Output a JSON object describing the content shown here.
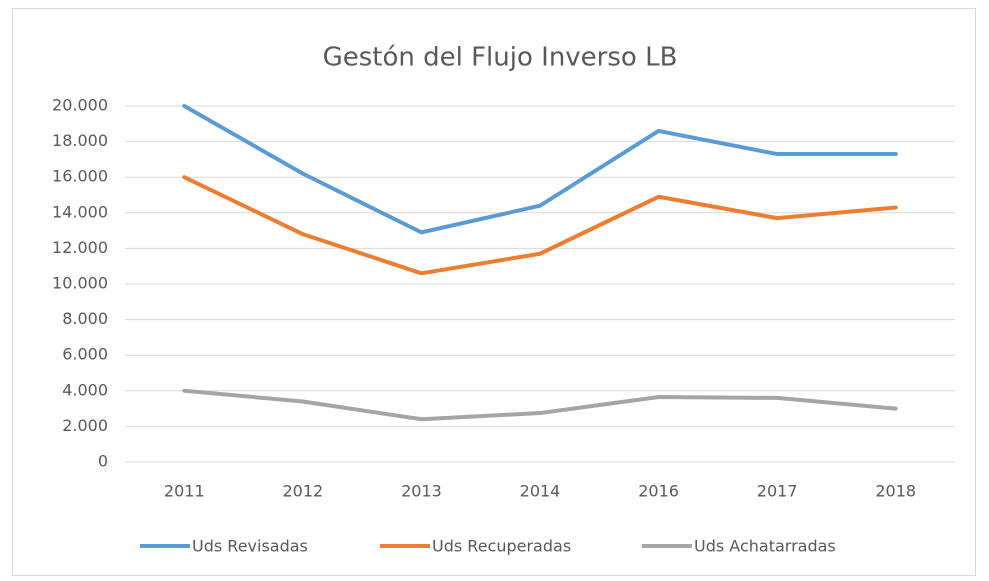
{
  "chart_data": {
    "type": "line",
    "title": "Gestón del Flujo Inverso LB",
    "categories": [
      "2011",
      "2012",
      "2013",
      "2014",
      "2016",
      "2017",
      "2018"
    ],
    "series": [
      {
        "name": "Uds Revisadas",
        "color": "#5b9bd5",
        "values": [
          20000,
          16200,
          12900,
          14400,
          18600,
          17300,
          17300
        ]
      },
      {
        "name": "Uds Recuperadas",
        "color": "#ed7d31",
        "values": [
          16000,
          12800,
          10600,
          11700,
          14900,
          13700,
          14300
        ]
      },
      {
        "name": "Uds Achatarradas",
        "color": "#a5a5a5",
        "values": [
          4000,
          3400,
          2400,
          2750,
          3650,
          3600,
          3000
        ]
      }
    ],
    "ylim": [
      0,
      20000
    ],
    "yticks": [
      0,
      {
        "value": 2000,
        "label": "2.000"
      },
      {
        "value": 4000,
        "label": "4.000"
      },
      {
        "value": 6000,
        "label": "6.000"
      },
      {
        "value": 8000,
        "label": "8.000"
      },
      {
        "value": 10000,
        "label": "10.000"
      },
      {
        "value": 12000,
        "label": "12.000"
      },
      {
        "value": 14000,
        "label": "14.000"
      },
      {
        "value": 16000,
        "label": "16.000"
      },
      {
        "value": 18000,
        "label": "18.000"
      },
      {
        "value": 20000,
        "label": "20.000"
      }
    ],
    "grid": true,
    "legend": "bottom"
  }
}
